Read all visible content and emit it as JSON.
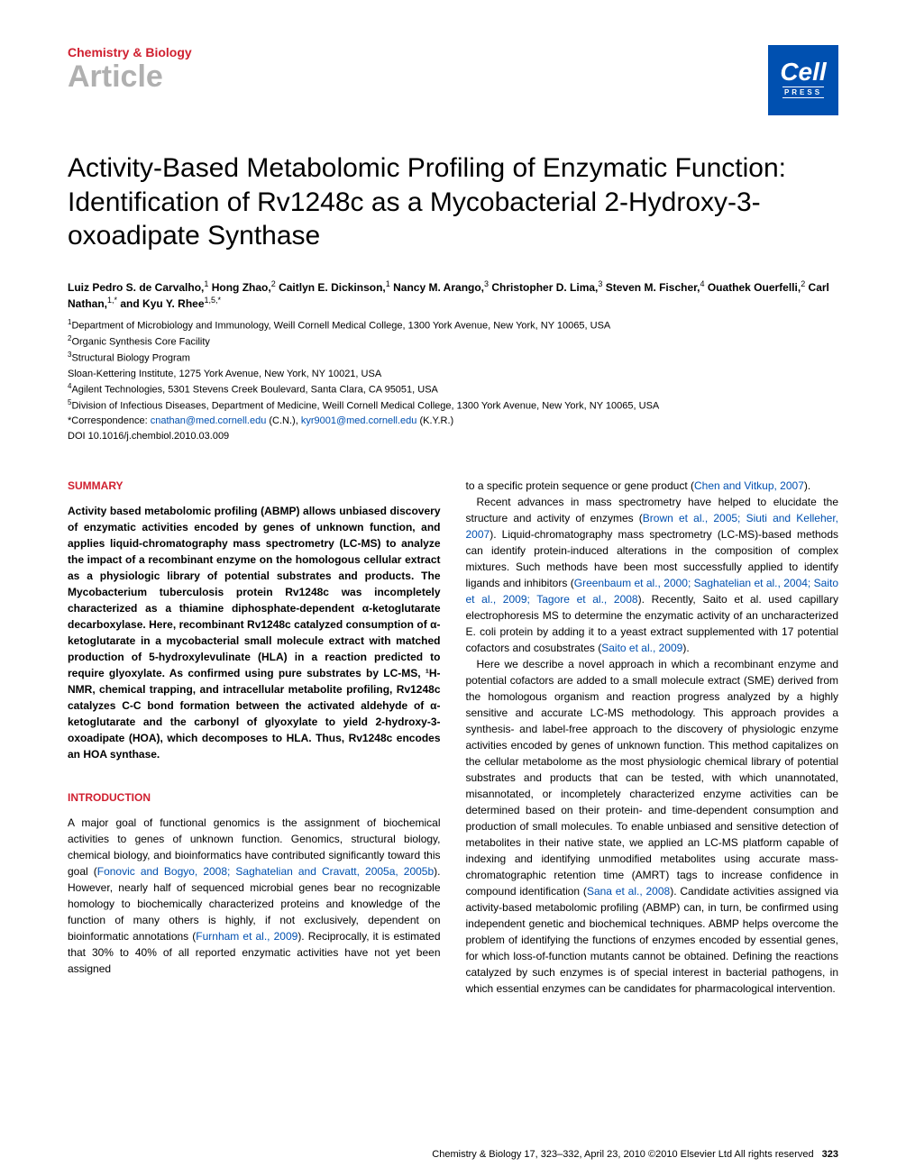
{
  "header": {
    "journal": "Chemistry & Biology",
    "type": "Article",
    "press_main": "Cell",
    "press_sub": "PRESS"
  },
  "title": "Activity-Based Metabolomic Profiling of Enzymatic Function: Identification of Rv1248c as a Mycobacterial 2-Hydroxy-3-oxoadipate Synthase",
  "authors_html": "Luiz Pedro S. de Carvalho,<sup>1</sup> Hong Zhao,<sup>2</sup> Caitlyn E. Dickinson,<sup>1</sup> Nancy M. Arango,<sup>3</sup> Christopher D. Lima,<sup>3</sup> Steven M. Fischer,<sup>4</sup> Ouathek Ouerfelli,<sup>2</sup> Carl Nathan,<sup>1,*</sup> and Kyu Y. Rhee<sup>1,5,*</sup>",
  "affiliations": [
    "<sup>1</sup>Department of Microbiology and Immunology, Weill Cornell Medical College, 1300 York Avenue, New York, NY 10065, USA",
    "<sup>2</sup>Organic Synthesis Core Facility",
    "<sup>3</sup>Structural Biology Program",
    "Sloan-Kettering Institute, 1275 York Avenue, New York, NY 10021, USA",
    "<sup>4</sup>Agilent Technologies, 5301 Stevens Creek Boulevard, Santa Clara, CA 95051, USA",
    "<sup>5</sup>Division of Infectious Diseases, Department of Medicine, Weill Cornell Medical College, 1300 York Avenue, New York, NY 10065, USA"
  ],
  "correspondence_label": "*Correspondence: ",
  "correspondence_email1": "cnathan@med.cornell.edu",
  "correspondence_cn": " (C.N.), ",
  "correspondence_email2": "kyr9001@med.cornell.edu",
  "correspondence_kyr": " (K.Y.R.)",
  "doi": "DOI 10.1016/j.chembiol.2010.03.009",
  "summary": {
    "heading": "SUMMARY",
    "text": "Activity based metabolomic profiling (ABMP) allows unbiased discovery of enzymatic activities encoded by genes of unknown function, and applies liquid-chromatography mass spectrometry (LC-MS) to analyze the impact of a recombinant enzyme on the homologous cellular extract as a physiologic library of potential substrates and products. The Mycobacterium tuberculosis protein Rv1248c was incompletely characterized as a thiamine diphosphate-dependent α-ketoglutarate decarboxylase. Here, recombinant Rv1248c catalyzed consumption of α-ketoglutarate in a mycobacterial small molecule extract with matched production of 5-hydroxylevulinate (HLA) in a reaction predicted to require glyoxylate. As confirmed using pure substrates by LC-MS, ¹H-NMR, chemical trapping, and intracellular metabolite profiling, Rv1248c catalyzes C-C bond formation between the activated aldehyde of α-ketoglutarate and the carbonyl of glyoxylate to yield 2-hydroxy-3-oxoadipate (HOA), which decomposes to HLA. Thus, Rv1248c encodes an HOA synthase."
  },
  "introduction": {
    "heading": "INTRODUCTION",
    "para1_a": "A major goal of functional genomics is the assignment of biochemical activities to genes of unknown function. Genomics, structural biology, chemical biology, and bioinformatics have contributed significantly toward this goal (",
    "para1_link1": "Fonovic and Bogyo, 2008; Saghatelian and Cravatt, 2005a, 2005b",
    "para1_b": "). However, nearly half of sequenced microbial genes bear no recognizable homology to biochemically characterized proteins and knowledge of the function of many others is highly, if not exclusively, dependent on bioinformatic annotations (",
    "para1_link2": "Furnham et al., 2009",
    "para1_c": "). Reciprocally, it is estimated that 30% to 40% of all reported enzymatic activities have not yet been assigned",
    "col2_cont_a": "to a specific protein sequence or gene product (",
    "col2_cont_link": "Chen and Vitkup, 2007",
    "col2_cont_b": ").",
    "para2_a": "Recent advances in mass spectrometry have helped to elucidate the structure and activity of enzymes (",
    "para2_link1": "Brown et al., 2005; Siuti and Kelleher, 2007",
    "para2_b": "). Liquid-chromatography mass spectrometry (LC-MS)-based methods can identify protein-induced alterations in the composition of complex mixtures. Such methods have been most successfully applied to identify ligands and inhibitors (",
    "para2_link2": "Greenbaum et al., 2000; Saghatelian et al., 2004; Saito et al., 2009; Tagore et al., 2008",
    "para2_c": "). Recently, Saito et al. used capillary electrophoresis MS to determine the enzymatic activity of an uncharacterized E. coli protein by adding it to a yeast extract supplemented with 17 potential cofactors and cosubstrates (",
    "para2_link3": "Saito et al., 2009",
    "para2_d": ").",
    "para3_a": "Here we describe a novel approach in which a recombinant enzyme and potential cofactors are added to a small molecule extract (SME) derived from the homologous organism and reaction progress analyzed by a highly sensitive and accurate LC-MS methodology. This approach provides a synthesis- and label-free approach to the discovery of physiologic enzyme activities encoded by genes of unknown function. This method capitalizes on the cellular metabolome as the most physiologic chemical library of potential substrates and products that can be tested, with which unannotated, misannotated, or incompletely characterized enzyme activities can be determined based on their protein- and time-dependent consumption and production of small molecules. To enable unbiased and sensitive detection of metabolites in their native state, we applied an LC-MS platform capable of indexing and identifying unmodified metabolites using accurate mass-chromatographic retention time (AMRT) tags to increase confidence in compound identification (",
    "para3_link1": "Sana et al., 2008",
    "para3_b": "). Candidate activities assigned via activity-based metabolomic profiling (ABMP) can, in turn, be confirmed using independent genetic and biochemical techniques. ABMP helps overcome the problem of identifying the functions of enzymes encoded by essential genes, for which loss-of-function mutants cannot be obtained. Defining the reactions catalyzed by such enzymes is of special interest in bacterial pathogens, in which essential enzymes can be candidates for pharmacological intervention."
  },
  "footer": {
    "citation": "Chemistry & Biology 17, 323–332, April 23, 2010 ©2010 Elsevier Ltd All rights reserved",
    "page": "323"
  },
  "colors": {
    "accent_red": "#d02030",
    "link_blue": "#0050b0",
    "grey": "#b0b0b0",
    "press_bg": "#0050b0"
  }
}
